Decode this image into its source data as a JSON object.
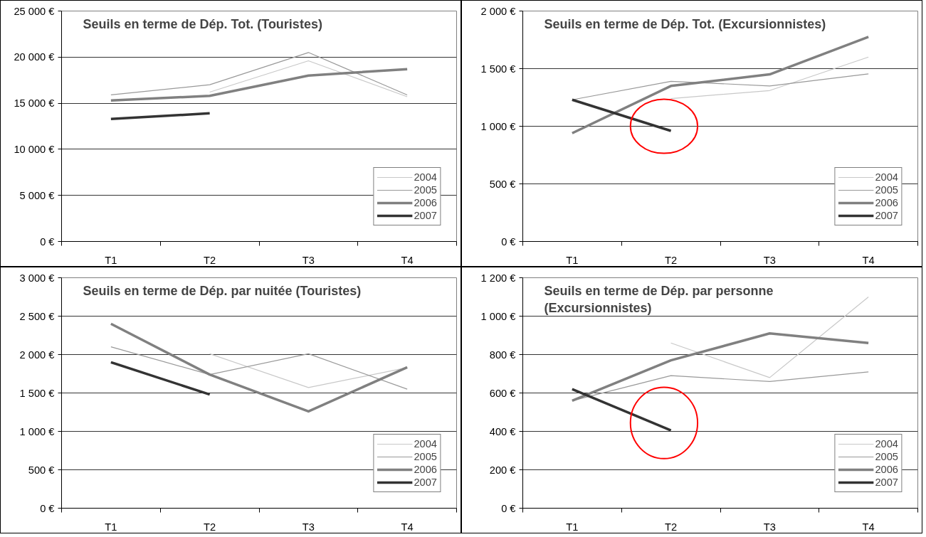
{
  "chart_data": [
    {
      "type": "line",
      "title": "Seuils en terme de Dép. Tot. (Touristes)",
      "categories": [
        "T1",
        "T2",
        "T3",
        "T4"
      ],
      "series": [
        {
          "name": "2004",
          "color": "#c8c8c8",
          "values": [
            null,
            16200,
            19600,
            15700
          ]
        },
        {
          "name": "2005",
          "color": "#999999",
          "values": [
            15900,
            17000,
            20500,
            15900
          ]
        },
        {
          "name": "2006",
          "color": "#808080",
          "values": [
            15300,
            15800,
            18000,
            18700
          ]
        },
        {
          "name": "2007",
          "color": "#333333",
          "values": [
            13300,
            13900,
            null,
            null
          ]
        }
      ],
      "ylim": [
        0,
        25000
      ],
      "yticks": [
        {
          "value": 0,
          "label": "0 €"
        },
        {
          "value": 5000,
          "label": "5 000 €"
        },
        {
          "value": 10000,
          "label": "10 000 €"
        },
        {
          "value": 15000,
          "label": "15 000 €"
        },
        {
          "value": 20000,
          "label": "20 000 €"
        },
        {
          "value": 25000,
          "label": "25 000 €"
        }
      ],
      "grid": "y",
      "legend": "bottom right",
      "marker": "none",
      "line_style": "solid"
    },
    {
      "type": "line",
      "title": "Seuils en terme de Dép. Tot. (Excursionnistes)",
      "categories": [
        "T1",
        "T2",
        "T3",
        "T4"
      ],
      "series": [
        {
          "name": "2004",
          "color": "#c8c8c8",
          "values": [
            null,
            1240,
            1310,
            1600
          ]
        },
        {
          "name": "2005",
          "color": "#999999",
          "values": [
            1230,
            1390,
            1350,
            1455
          ]
        },
        {
          "name": "2006",
          "color": "#808080",
          "values": [
            940,
            1350,
            1450,
            1775
          ]
        },
        {
          "name": "2007",
          "color": "#333333",
          "values": [
            1230,
            960,
            null,
            null
          ]
        }
      ],
      "ylim": [
        0,
        2000
      ],
      "yticks": [
        {
          "value": 0,
          "label": "0 €"
        },
        {
          "value": 500,
          "label": "500 €"
        },
        {
          "value": 1000,
          "label": "1 000 €"
        },
        {
          "value": 1500,
          "label": "1 500 €"
        },
        {
          "value": 2000,
          "label": "2 000 €"
        }
      ],
      "grid": "y",
      "legend": "bottom right",
      "marker": "none",
      "line_style": "solid"
    },
    {
      "type": "line",
      "title": "Seuils en terme de Dép. par nuitée (Touristes)",
      "categories": [
        "T1",
        "T2",
        "T3",
        "T4"
      ],
      "series": [
        {
          "name": "2004",
          "color": "#c8c8c8",
          "values": [
            null,
            2010,
            1570,
            1830
          ]
        },
        {
          "name": "2005",
          "color": "#999999",
          "values": [
            2100,
            1740,
            2010,
            1550
          ]
        },
        {
          "name": "2006",
          "color": "#808080",
          "values": [
            2400,
            1740,
            1260,
            1835
          ]
        },
        {
          "name": "2007",
          "color": "#333333",
          "values": [
            1900,
            1480,
            null,
            null
          ]
        }
      ],
      "ylim": [
        0,
        3000
      ],
      "yticks": [
        {
          "value": 0,
          "label": "0 €"
        },
        {
          "value": 500,
          "label": "500 €"
        },
        {
          "value": 1000,
          "label": "1 000 €"
        },
        {
          "value": 1500,
          "label": "1 500 €"
        },
        {
          "value": 2000,
          "label": "2 000 €"
        },
        {
          "value": 2500,
          "label": "2 500 €"
        },
        {
          "value": 3000,
          "label": "3 000 €"
        }
      ],
      "grid": "y",
      "legend": "bottom right",
      "marker": "none",
      "line_style": "solid"
    },
    {
      "type": "line",
      "title": "Seuils en terme de Dép. par personne (Excursionnistes)",
      "categories": [
        "T1",
        "T2",
        "T3",
        "T4"
      ],
      "series": [
        {
          "name": "2004",
          "color": "#c8c8c8",
          "values": [
            null,
            860,
            680,
            1100
          ]
        },
        {
          "name": "2005",
          "color": "#999999",
          "values": [
            560,
            690,
            660,
            710
          ]
        },
        {
          "name": "2006",
          "color": "#808080",
          "values": [
            560,
            770,
            910,
            860
          ]
        },
        {
          "name": "2007",
          "color": "#333333",
          "values": [
            620,
            405,
            null,
            null
          ]
        }
      ],
      "ylim": [
        0,
        1200
      ],
      "yticks": [
        {
          "value": 0,
          "label": "0 €"
        },
        {
          "value": 200,
          "label": "200 €"
        },
        {
          "value": 400,
          "label": "400 €"
        },
        {
          "value": 600,
          "label": "600 €"
        },
        {
          "value": 800,
          "label": "800 €"
        },
        {
          "value": 1000,
          "label": "1 000 €"
        },
        {
          "value": 1200,
          "label": "1 200 €"
        }
      ],
      "grid": "y",
      "legend": "bottom right",
      "marker": "none",
      "line_style": "solid"
    }
  ]
}
